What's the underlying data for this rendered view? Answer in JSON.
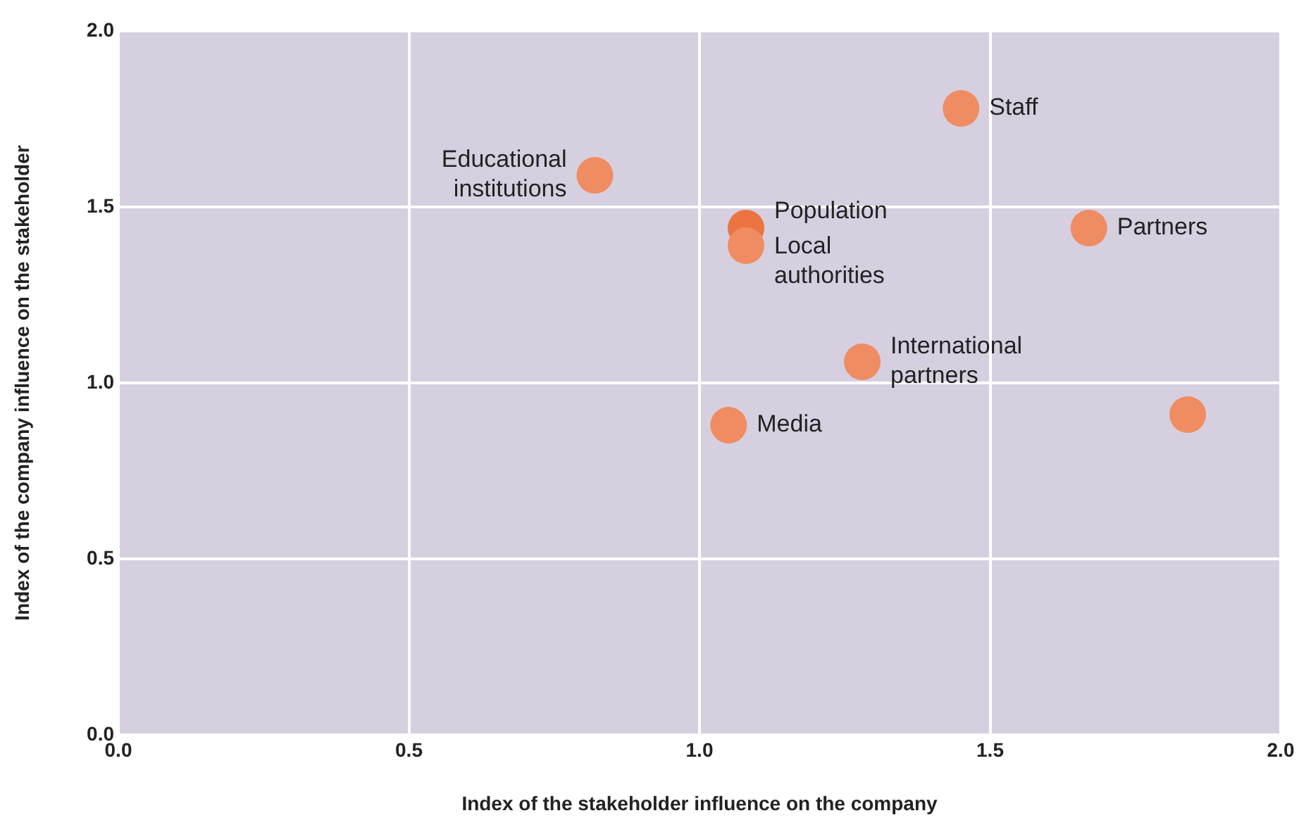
{
  "chart_data": {
    "type": "scatter",
    "xlabel": "Index of the stakeholder influence on the company",
    "ylabel": "Index of the company influence on the stakeholder",
    "x": [
      0.82,
      1.08,
      1.08,
      1.45,
      1.67,
      1.28,
      1.05,
      1.84
    ],
    "series": [
      {
        "colors": [
          "#f08c62",
          "#ec7440",
          "#f08c62",
          "#f08c62",
          "#f08c62",
          "#f08c62",
          "#f08c62",
          "#f08c62"
        ],
        "values": [
          1.59,
          1.44,
          1.39,
          1.78,
          1.44,
          1.06,
          0.88,
          0.91
        ]
      }
    ],
    "xlim": [
      0,
      2
    ],
    "ylim": [
      0,
      2
    ],
    "xticks": [
      {
        "value": 0,
        "label": "0.0"
      },
      {
        "value": 0.5,
        "label": "0.5"
      },
      {
        "value": 1,
        "label": "1.0"
      },
      {
        "value": 1.5,
        "label": "1.5"
      },
      {
        "value": 2,
        "label": "2.0"
      }
    ],
    "yticks": [
      {
        "value": 0,
        "label": "0.0"
      },
      {
        "value": 0.5,
        "label": "0.5"
      },
      {
        "value": 1,
        "label": "1.0"
      },
      {
        "value": 1.5,
        "label": "1.5"
      },
      {
        "value": 2,
        "label": "2.0"
      }
    ],
    "grid": true,
    "legend": false,
    "marker": "circle",
    "annotations": [
      {
        "text": "Educational\ninstitutions",
        "x": 0.82,
        "y": 1.59
      },
      {
        "text": "Population",
        "x": 1.08,
        "y": 1.44
      },
      {
        "text": "Local\nauthorities",
        "x": 1.08,
        "y": 1.39
      },
      {
        "text": "Staff",
        "x": 1.45,
        "y": 1.78
      },
      {
        "text": "Partners",
        "x": 1.67,
        "y": 1.44
      },
      {
        "text": "International\npartners",
        "x": 1.28,
        "y": 1.06
      },
      {
        "text": "Media",
        "x": 1.05,
        "y": 0.88
      }
    ]
  }
}
